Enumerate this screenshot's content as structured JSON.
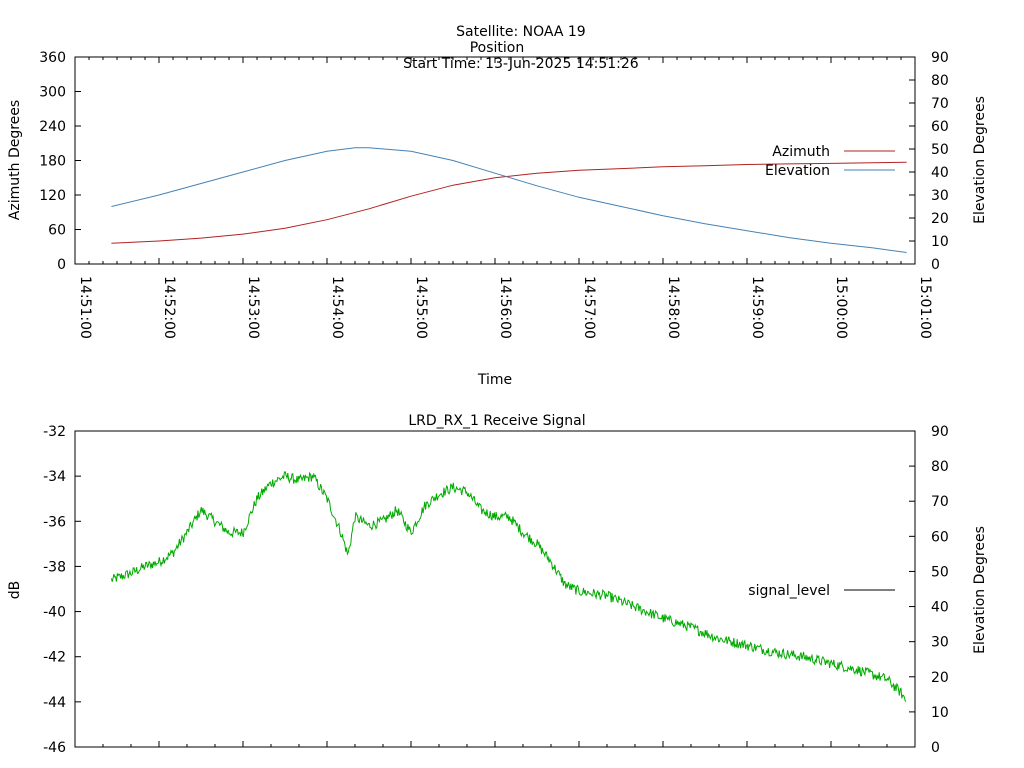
{
  "header": {
    "satellite": "Satellite: NOAA 19",
    "start_time": "Start Time: 13-Jun-2025 14:51:26"
  },
  "chart_data": [
    {
      "type": "line",
      "title": "Position",
      "xlabel": "Time",
      "ylabel": "Azimuth Degrees",
      "y2label": "Elevation Degrees",
      "xlim": [
        "14:51:00",
        "15:01:00"
      ],
      "ylim": [
        0,
        360
      ],
      "y2lim": [
        0,
        90
      ],
      "x_ticks": [
        "14:51:00",
        "14:52:00",
        "14:53:00",
        "14:54:00",
        "14:55:00",
        "14:56:00",
        "14:57:00",
        "14:58:00",
        "14:59:00",
        "15:00:00",
        "15:01:00"
      ],
      "y_ticks": [
        "0",
        "60",
        "120",
        "180",
        "240",
        "300",
        "360"
      ],
      "y2_ticks": [
        "0",
        "10",
        "20",
        "30",
        "40",
        "50",
        "60",
        "70",
        "80",
        "90"
      ],
      "legend_position": "right",
      "series": [
        {
          "name": "Azimuth",
          "axis": "y",
          "color": "#b22222",
          "x": [
            "14:51:26",
            "14:52:00",
            "14:52:30",
            "14:53:00",
            "14:53:30",
            "14:54:00",
            "14:54:30",
            "14:55:00",
            "14:55:30",
            "14:56:00",
            "14:56:30",
            "14:57:00",
            "14:57:30",
            "14:58:00",
            "14:58:30",
            "14:59:00",
            "14:59:30",
            "15:00:00",
            "15:00:30",
            "15:00:54"
          ],
          "y": [
            36,
            40,
            45,
            52,
            62,
            77,
            96,
            118,
            137,
            150,
            158,
            163,
            166,
            169,
            171,
            173,
            174,
            175,
            176,
            177
          ]
        },
        {
          "name": "Elevation",
          "axis": "y2",
          "color": "#4682b4",
          "x": [
            "14:51:26",
            "14:52:00",
            "14:52:30",
            "14:53:00",
            "14:53:30",
            "14:54:00",
            "14:54:20",
            "14:54:30",
            "14:55:00",
            "14:55:30",
            "14:56:00",
            "14:56:30",
            "14:57:00",
            "14:57:30",
            "14:58:00",
            "14:58:30",
            "14:59:00",
            "14:59:30",
            "15:00:00",
            "15:00:30",
            "15:00:54"
          ],
          "y": [
            25,
            30,
            35,
            40,
            45,
            49,
            50.5,
            50.5,
            49,
            45,
            39.5,
            34,
            29,
            25,
            21,
            17.5,
            14.5,
            11.5,
            9,
            7,
            5
          ]
        }
      ]
    },
    {
      "type": "line",
      "title": "LRD_RX_1 Receive Signal",
      "xlabel": "",
      "ylabel": "dB",
      "y2label": "Elevation Degrees",
      "xlim": [
        "14:51:00",
        "15:01:00"
      ],
      "ylim": [
        -46,
        -32
      ],
      "y2lim": [
        0,
        90
      ],
      "y_ticks": [
        "-46",
        "-44",
        "-42",
        "-40",
        "-38",
        "-36",
        "-34",
        "-32"
      ],
      "y2_ticks": [
        "0",
        "10",
        "20",
        "30",
        "40",
        "50",
        "60",
        "70",
        "80",
        "90"
      ],
      "legend_position": "right",
      "series": [
        {
          "name": "signal_level",
          "axis": "y",
          "color": "#00aa00",
          "x": [
            "14:51:26",
            "14:51:40",
            "14:51:50",
            "14:52:00",
            "14:52:10",
            "14:52:20",
            "14:52:30",
            "14:52:40",
            "14:52:50",
            "14:53:00",
            "14:53:10",
            "14:53:20",
            "14:53:30",
            "14:53:40",
            "14:53:50",
            "14:54:00",
            "14:54:10",
            "14:54:15",
            "14:54:20",
            "14:54:30",
            "14:54:40",
            "14:54:50",
            "14:55:00",
            "14:55:10",
            "14:55:20",
            "14:55:30",
            "14:55:40",
            "14:55:50",
            "14:56:00",
            "14:56:10",
            "14:56:20",
            "14:56:30",
            "14:56:40",
            "14:56:50",
            "14:57:00",
            "14:57:20",
            "14:57:40",
            "14:58:00",
            "14:58:20",
            "14:58:40",
            "14:59:00",
            "14:59:20",
            "14:59:40",
            "15:00:00",
            "15:00:20",
            "15:00:40",
            "15:00:50",
            "15:00:54"
          ],
          "y": [
            -38.6,
            -38.3,
            -38.0,
            -37.8,
            -37.4,
            -36.5,
            -35.5,
            -36.0,
            -36.5,
            -36.5,
            -35.0,
            -34.3,
            -34.0,
            -34.2,
            -34.0,
            -35.0,
            -36.5,
            -37.5,
            -35.8,
            -36.2,
            -36.0,
            -35.5,
            -36.5,
            -35.3,
            -34.8,
            -34.5,
            -34.7,
            -35.5,
            -35.8,
            -35.8,
            -36.5,
            -37.0,
            -37.8,
            -38.8,
            -39.1,
            -39.3,
            -39.8,
            -40.3,
            -40.7,
            -41.2,
            -41.5,
            -41.8,
            -42.0,
            -42.3,
            -42.6,
            -43.0,
            -43.6,
            -44.0
          ]
        }
      ]
    }
  ]
}
